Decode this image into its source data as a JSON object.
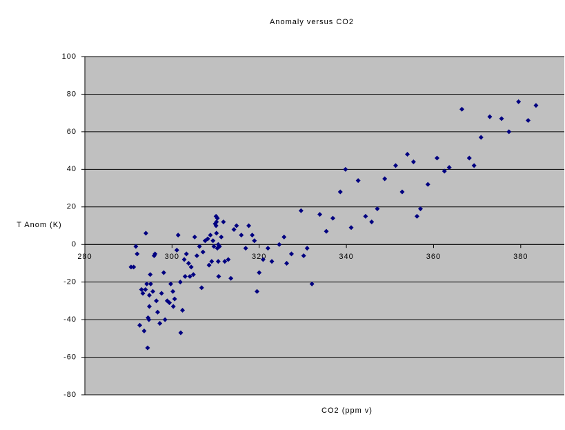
{
  "chart_data": {
    "type": "scatter",
    "title": "Anomaly versus CO2",
    "x_label": "CO2 (ppm v)",
    "y_label": "T Anom (K)",
    "xlim": [
      280,
      390
    ],
    "xticks": [
      280,
      300,
      320,
      340,
      360,
      380
    ],
    "ylim": [
      -80,
      100
    ],
    "yticks": [
      -80,
      -60,
      -40,
      -20,
      0,
      20,
      40,
      60,
      80,
      100
    ],
    "grid": true,
    "plot_background": "#c0c0c0",
    "series": [
      {
        "name": "T Anom",
        "color": "#000080",
        "x": [
          290.6,
          291.2,
          291.7,
          292,
          292.6,
          293,
          293.3,
          293.6,
          293.9,
          294,
          294.2,
          294.4,
          294.5,
          294.7,
          294.8,
          294.8,
          295,
          295.1,
          295.6,
          295.9,
          296.1,
          296.4,
          296.7,
          297.2,
          297.6,
          298.1,
          298.4,
          298.9,
          299.4,
          299.7,
          300.2,
          300.3,
          300.6,
          301.1,
          301.4,
          301.9,
          302,
          302.4,
          302.8,
          303,
          303.3,
          303.8,
          304.1,
          304.4,
          304.9,
          305.2,
          305.7,
          306.3,
          306.8,
          307.1,
          307.6,
          308.2,
          308.5,
          308.8,
          309.1,
          309.4,
          309.6,
          309.9,
          310.1,
          310.1,
          310.2,
          310.2,
          310.4,
          310.4,
          310.6,
          310.6,
          310.7,
          310.9,
          311.3,
          311.8,
          312.1,
          312.9,
          313.5,
          314.2,
          314.8,
          315.9,
          316.9,
          317.6,
          318.4,
          318.9,
          319.5,
          320,
          320.9,
          322,
          322.9,
          324.6,
          325.7,
          326.3,
          327.4,
          329.6,
          330.2,
          331,
          332.1,
          333.9,
          335.4,
          336.9,
          338.6,
          339.8,
          341.1,
          342.7,
          344.4,
          345.8,
          347.1,
          348.8,
          351.3,
          352.8,
          354,
          355.4,
          356.2,
          357,
          358.7,
          360.8,
          362.5,
          363.6,
          366.5,
          368.2,
          369.3,
          370.9,
          372.9,
          375.6,
          377.3,
          379.5,
          381.7,
          383.5
        ],
        "values": [
          -12,
          -12,
          -1,
          -5,
          -43,
          -24,
          -26,
          -46,
          -24,
          6,
          -21,
          -55,
          -39,
          -40,
          -33,
          -27,
          -16,
          -21,
          -25,
          -6,
          -5,
          -30,
          -36,
          -42,
          -26,
          -15,
          -40,
          -30,
          -31,
          -21,
          -25,
          -33,
          -29,
          -3,
          5,
          -20,
          -47,
          -35,
          -8,
          -17,
          -5,
          -10,
          -17,
          -12,
          -16,
          4,
          -6,
          -1,
          -23,
          -4,
          2,
          3,
          -11,
          5,
          -9,
          2,
          -1,
          11,
          10,
          15,
          12,
          6,
          14,
          -2,
          0,
          -9,
          -17,
          -1,
          4,
          12,
          -9,
          -8,
          -18,
          8,
          10,
          5,
          -2,
          10,
          5,
          2,
          -25,
          -15,
          -8,
          -2,
          -9,
          0,
          4,
          -10,
          -5,
          18,
          -6,
          -2,
          -21,
          16,
          7,
          14,
          28,
          40,
          9,
          34,
          15,
          12,
          19,
          35,
          42,
          28,
          48,
          44,
          15,
          19,
          32,
          46,
          39,
          41,
          72,
          46,
          42,
          57,
          68,
          67,
          60,
          76,
          66,
          74
        ]
      }
    ]
  }
}
